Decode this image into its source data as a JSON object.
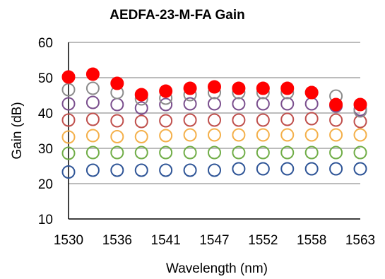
{
  "chart_data": {
    "type": "scatter",
    "title": "AEDFA-23-M-FA Gain",
    "xlabel": "Wavelength (nm)",
    "ylabel": "Gain (dB)",
    "x_tick_labels": [
      "1530",
      "1536",
      "1541",
      "1547",
      "1552",
      "1558",
      "1563"
    ],
    "x": [
      "1530",
      "1533",
      "1536",
      "1539",
      "1541",
      "1544",
      "1547",
      "1550",
      "1552",
      "1555",
      "1558",
      "1560",
      "1563"
    ],
    "ylim": [
      10,
      60
    ],
    "yticks": [
      10,
      20,
      30,
      40,
      50,
      60
    ],
    "grid": true,
    "legend": "none",
    "series": [
      {
        "color": "#2F5597",
        "filled": false,
        "values": [
          23.3,
          23.8,
          23.8,
          23.8,
          23.8,
          23.8,
          23.8,
          24.2,
          24.2,
          24.2,
          24.2,
          24.2,
          24.2
        ]
      },
      {
        "color": "#70AD47",
        "filled": false,
        "values": [
          28.6,
          28.8,
          28.8,
          28.8,
          28.8,
          28.8,
          28.8,
          28.8,
          28.8,
          28.8,
          28.8,
          28.8,
          28.8
        ]
      },
      {
        "color": "#F4B04A",
        "filled": false,
        "values": [
          33.2,
          33.6,
          33.3,
          33.3,
          33.6,
          33.8,
          33.8,
          33.8,
          33.8,
          33.8,
          33.8,
          33.8,
          33.8
        ]
      },
      {
        "color": "#C0504D",
        "filled": false,
        "values": [
          38.0,
          38.2,
          37.8,
          37.6,
          37.8,
          38.0,
          38.0,
          38.0,
          38.0,
          38.2,
          38.4,
          38.0,
          37.6
        ]
      },
      {
        "color": "#7B4F8E",
        "filled": false,
        "values": [
          42.6,
          43.0,
          42.4,
          41.4,
          42.4,
          42.6,
          42.6,
          42.6,
          42.6,
          42.6,
          42.6,
          42.0,
          41.0
        ]
      },
      {
        "color": "#8C8C8C",
        "filled": false,
        "values": [
          46.6,
          47.0,
          45.8,
          44.0,
          44.2,
          45.2,
          45.8,
          45.8,
          45.8,
          45.8,
          45.8,
          44.8,
          40.6
        ]
      },
      {
        "color": "#FF0000",
        "filled": true,
        "values": [
          50.2,
          51.0,
          48.4,
          45.2,
          46.2,
          47.0,
          47.4,
          47.0,
          47.0,
          47.0,
          45.8,
          42.4,
          42.4
        ]
      }
    ],
    "grid_color": "#A6A6A6",
    "axis_color": "#000000"
  }
}
